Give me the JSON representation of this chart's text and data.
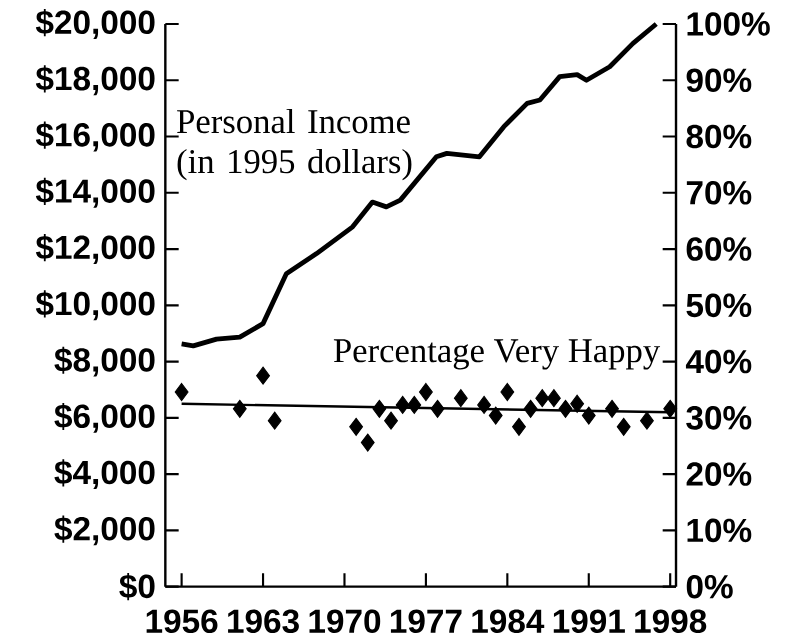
{
  "chart_data": {
    "type": "line",
    "xlim": [
      1954.6,
      1998.5
    ],
    "xticks": [
      1956,
      1963,
      1970,
      1977,
      1984,
      1991,
      1998
    ],
    "ylim": [
      0,
      20000
    ],
    "yticks": [
      {
        "value": 0,
        "label": "$0"
      },
      {
        "value": 2000,
        "label": "$2,000"
      },
      {
        "value": 4000,
        "label": "$4,000"
      },
      {
        "value": 6000,
        "label": "$6,000"
      },
      {
        "value": 8000,
        "label": "$8,000"
      },
      {
        "value": 10000,
        "label": "$10,000"
      },
      {
        "value": 12000,
        "label": "$12,000"
      },
      {
        "value": 14000,
        "label": "$14,000"
      },
      {
        "value": 16000,
        "label": "$16,000"
      },
      {
        "value": 18000,
        "label": "$18,000"
      },
      {
        "value": 20000,
        "label": "$20,000"
      }
    ],
    "y2lim": [
      0,
      100
    ],
    "y2ticks": [
      {
        "value": 0,
        "label": "0%"
      },
      {
        "value": 10,
        "label": "10%"
      },
      {
        "value": 20,
        "label": "20%"
      },
      {
        "value": 30,
        "label": "30%"
      },
      {
        "value": 40,
        "label": "40%"
      },
      {
        "value": 50,
        "label": "50%"
      },
      {
        "value": 60,
        "label": "60%"
      },
      {
        "value": 70,
        "label": "70%"
      },
      {
        "value": 80,
        "label": "80%"
      },
      {
        "value": 90,
        "label": "90%"
      },
      {
        "value": 100,
        "label": "100%"
      }
    ],
    "series": [
      {
        "name": "Personal Income (in 1995 dollars)",
        "axis": "y",
        "color": "#000000",
        "line_style": "solid",
        "marker": "none",
        "x": [
          1956,
          1957,
          1959,
          1961,
          1963,
          1965,
          1967.6,
          1970.7,
          1972.4,
          1973.6,
          1974.8,
          1977.9,
          1978.8,
          1981.6,
          1983.7,
          1985.7,
          1986.8,
          1988.5,
          1990,
          1990.8,
          1992.8,
          1994.8,
          1996.8
        ],
        "values": [
          8630,
          8560,
          8800,
          8870,
          9350,
          11120,
          11840,
          12790,
          13670,
          13500,
          13740,
          15280,
          15400,
          15280,
          16350,
          17180,
          17300,
          18130,
          18200,
          18000,
          18480,
          19310,
          20000
        ]
      },
      {
        "name": "Percentage Very Happy",
        "type": "scatter",
        "axis": "y2",
        "color": "#000000",
        "marker": "diamond",
        "x": [
          1956,
          1961,
          1963,
          1964,
          1971,
          1972,
          1973,
          1974,
          1975,
          1976,
          1977,
          1978,
          1980,
          1982,
          1983,
          1984,
          1985,
          1986,
          1987,
          1988,
          1989,
          1990,
          1991,
          1993,
          1994,
          1996,
          1998
        ],
        "values": [
          34.6,
          31.6,
          37.5,
          29.5,
          28.4,
          25.6,
          31.6,
          29.5,
          32.3,
          32.3,
          34.6,
          31.6,
          33.5,
          32.3,
          30.4,
          34.6,
          28.4,
          31.6,
          33.5,
          33.5,
          31.6,
          32.5,
          30.4,
          31.6,
          28.4,
          29.5,
          31.6
        ]
      },
      {
        "axis": "y2",
        "color": "#000000",
        "line_style": "solid",
        "marker": "none",
        "x": [
          1956,
          1998
        ],
        "values": [
          32.5,
          31.0
        ]
      }
    ]
  }
}
